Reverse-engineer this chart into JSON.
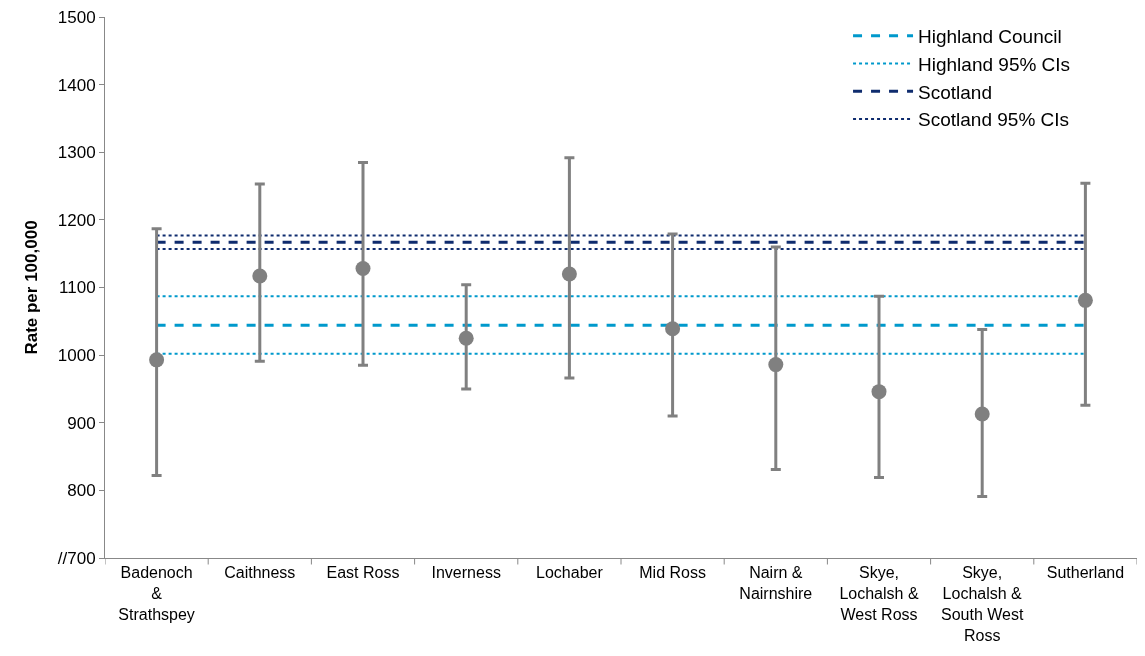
{
  "chart_data": {
    "type": "scatter",
    "ylabel": "Rate per 100,000",
    "categories": [
      "Badenoch\n&\nStrathspey",
      "Caithness",
      "East Ross",
      "Inverness",
      "Lochaber",
      "Mid Ross",
      "Nairn &\nNairnshire",
      "Skye,\nLochalsh &\nWest Ross",
      "Skye,\nLochalsh &\nSouth West\nRoss",
      "Sutherland"
    ],
    "series": [
      {
        "type": "line",
        "name": "Highland Council",
        "color": "#0099cc",
        "line_style": "dashed",
        "marker": "none",
        "values": [
          1044,
          1044,
          1044,
          1044,
          1044,
          1044,
          1044,
          1044,
          1044,
          1044
        ]
      },
      {
        "type": "line",
        "name": "Highland 95% CIs",
        "color": "#0099cc",
        "line_style": "dotted",
        "marker": "none",
        "values": [
          1087,
          1087,
          1087,
          1087,
          1087,
          1087,
          1087,
          1087,
          1087,
          1087
        ]
      },
      {
        "type": "line",
        "color": "#0099cc",
        "line_style": "dotted",
        "marker": "none",
        "values": [
          1002,
          1002,
          1002,
          1002,
          1002,
          1002,
          1002,
          1002,
          1002,
          1002
        ]
      },
      {
        "type": "line",
        "name": "Scotland",
        "color": "#0f2c6e",
        "line_style": "dashed",
        "marker": "none",
        "values": [
          1167,
          1167,
          1167,
          1167,
          1167,
          1167,
          1167,
          1167,
          1167,
          1167
        ]
      },
      {
        "type": "line",
        "name": "Scotland 95% CIs",
        "color": "#0f2c6e",
        "line_style": "dotted",
        "marker": "none",
        "values": [
          1177,
          1177,
          1177,
          1177,
          1177,
          1177,
          1177,
          1177,
          1177,
          1177
        ]
      },
      {
        "type": "line",
        "color": "#0f2c6e",
        "line_style": "dotted",
        "marker": "none",
        "values": [
          1157,
          1157,
          1157,
          1157,
          1157,
          1157,
          1157,
          1157,
          1157,
          1157
        ]
      },
      {
        "color": "#808080",
        "marker": "circle",
        "values": [
          993,
          1117,
          1128,
          1025,
          1120,
          1039,
          986,
          946,
          913,
          1081
        ],
        "errors": [
          [
            822,
            1187
          ],
          [
            991,
            1253
          ],
          [
            985,
            1285
          ],
          [
            950,
            1104
          ],
          [
            966,
            1292
          ],
          [
            910,
            1179
          ],
          [
            831,
            1160
          ],
          [
            819,
            1087
          ],
          [
            791,
            1038
          ],
          [
            926,
            1254
          ]
        ]
      }
    ],
    "ylim": [
      700,
      1500
    ],
    "yticks": [
      {
        "value": 700,
        "label": "//700"
      },
      800,
      900,
      1000,
      1100,
      1200,
      1300,
      1400,
      1500
    ],
    "legend": "top right"
  }
}
